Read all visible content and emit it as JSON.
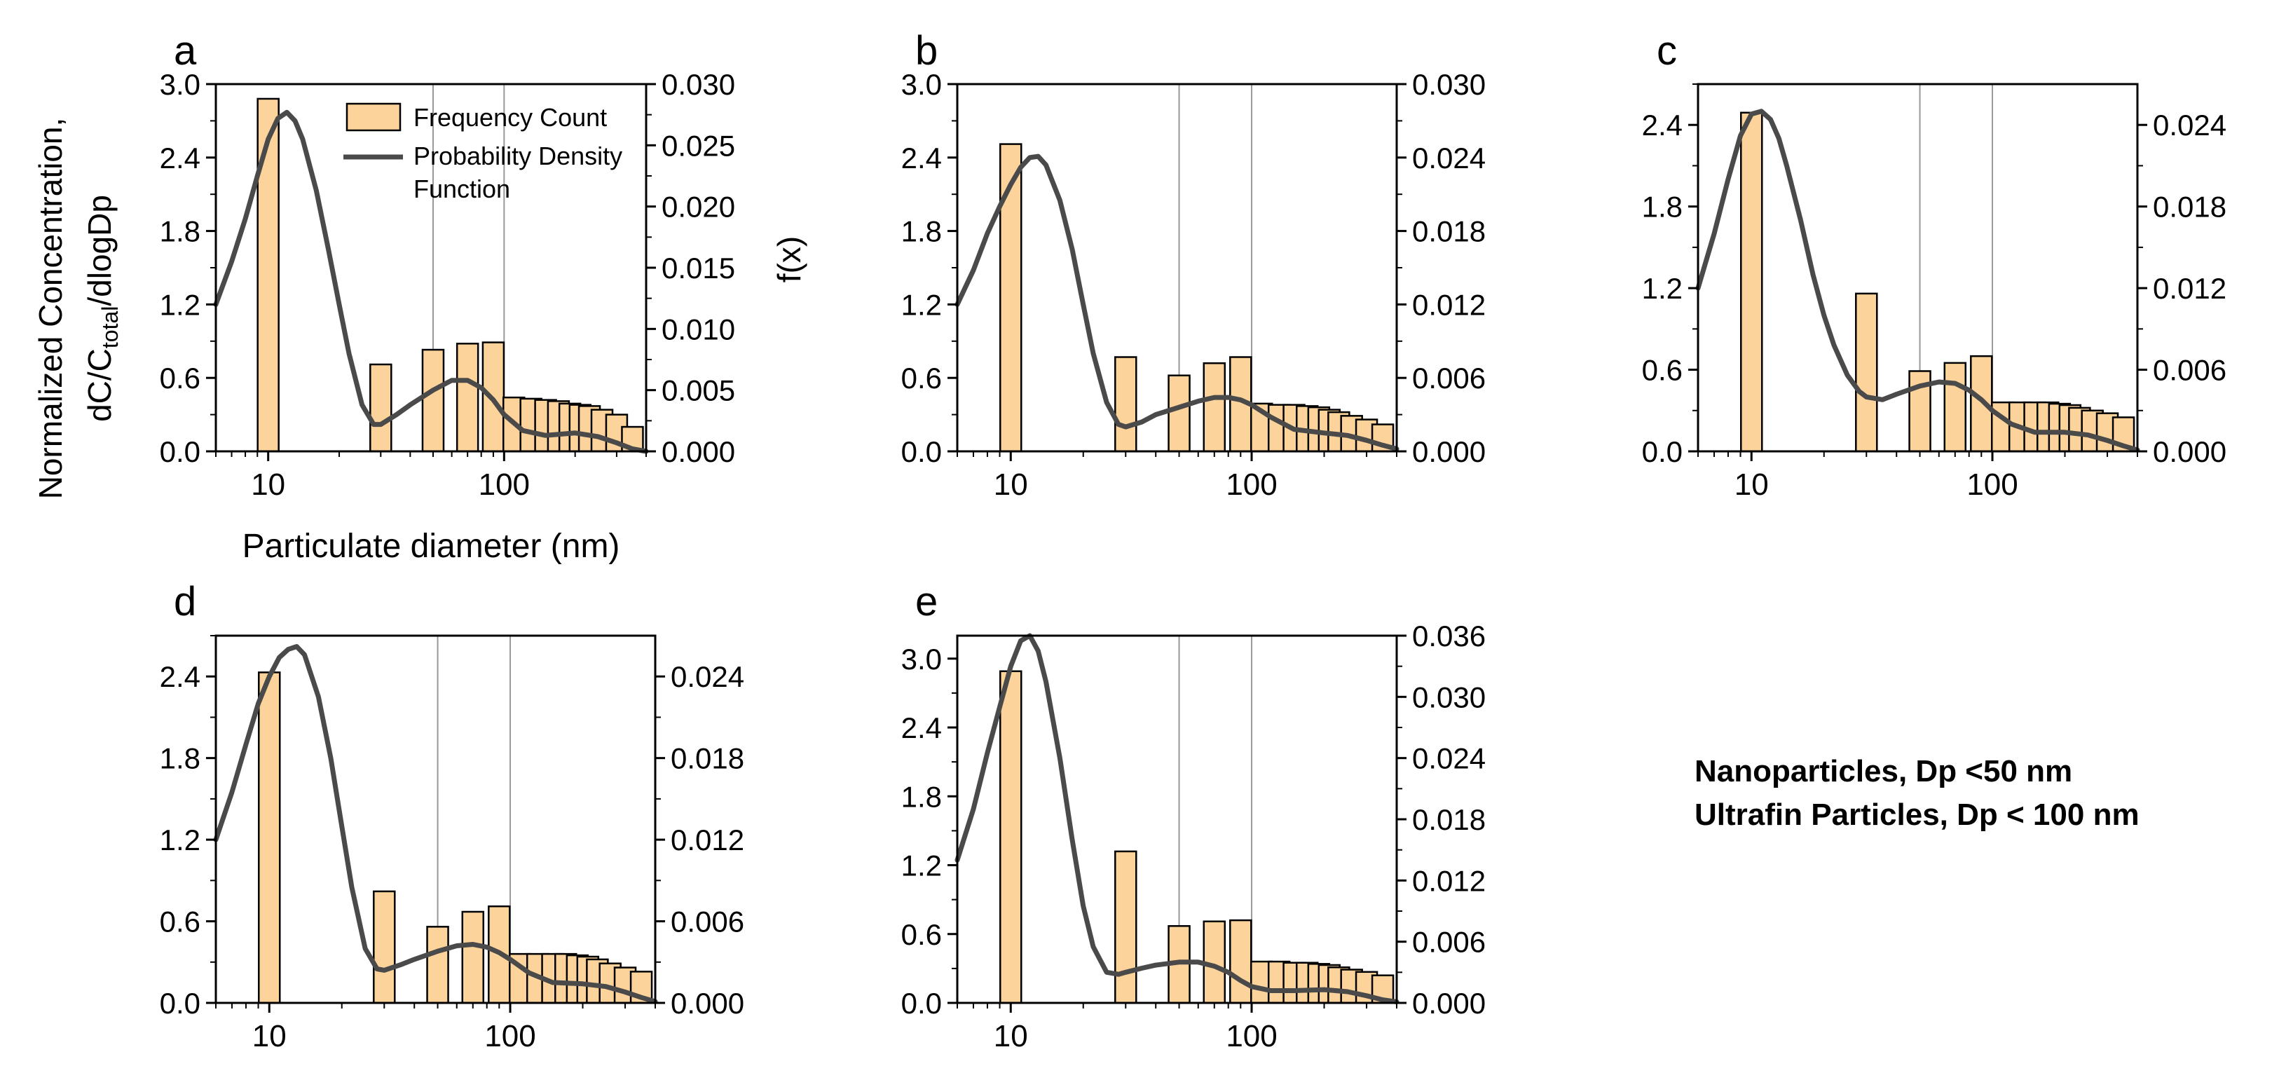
{
  "figure": {
    "caption": {
      "line1": "Nanoparticles, Dp <50 nm",
      "line2": "Ultrafin Particles, Dp < 100 nm"
    },
    "colors": {
      "bar_fill": "#FCD39B",
      "bar_stroke": "#000000",
      "curve": "#4A4A4A",
      "gridline": "#999999"
    },
    "legend": {
      "bar": "Frequency Count",
      "curve_line1": "Probability Density",
      "curve_line2": "Function"
    },
    "left_axis_label": {
      "line1": "Normalized Concentration,",
      "prefix": "dC/C",
      "sub": "total",
      "suffix": "/dlogDp"
    },
    "right_axis_label": "f(x)",
    "x_axis_label": "Particulate diameter (nm)"
  },
  "chart_data": [
    {
      "panel": "a",
      "type": "bar",
      "title": "",
      "xlabel": "Particulate diameter (nm)",
      "ylabel": "Normalized Concentration, dC/Ctotal/dlogDp",
      "y2label": "f(x)",
      "xscale": "log",
      "xlim": [
        6,
        400
      ],
      "xticks": [
        "10",
        "100"
      ],
      "vgrid": [
        50,
        100
      ],
      "ylim": [
        0,
        3.0
      ],
      "yticks": [
        "0.0",
        "0.6",
        "1.2",
        "1.8",
        "2.4",
        "3.0"
      ],
      "y2lim": [
        0,
        0.03
      ],
      "y2ticks": [
        "0.000",
        "0.005",
        "0.010",
        "0.015",
        "0.020",
        "0.025",
        "0.030"
      ],
      "legend": "top-right",
      "bars": {
        "name": "Frequency Count",
        "x": [
          10,
          30,
          50,
          70,
          90,
          110,
          130,
          150,
          170,
          190,
          210,
          230,
          260,
          300,
          350
        ],
        "values": [
          2.88,
          0.71,
          0.83,
          0.88,
          0.89,
          0.44,
          0.43,
          0.42,
          0.41,
          0.39,
          0.38,
          0.37,
          0.34,
          0.3,
          0.2
        ]
      },
      "pdf": {
        "name": "Probability Density Function",
        "x": [
          6,
          7,
          8,
          9,
          10,
          11,
          12,
          13,
          14,
          16,
          18,
          20,
          22,
          25,
          28,
          30,
          35,
          40,
          50,
          60,
          70,
          80,
          90,
          100,
          120,
          150,
          200,
          250,
          300,
          350,
          400
        ],
        "y": [
          0.012,
          0.0155,
          0.019,
          0.0225,
          0.0255,
          0.0272,
          0.0277,
          0.027,
          0.0255,
          0.0213,
          0.0165,
          0.012,
          0.008,
          0.0038,
          0.0022,
          0.0022,
          0.003,
          0.0038,
          0.005,
          0.0058,
          0.0058,
          0.0052,
          0.0042,
          0.003,
          0.0017,
          0.0013,
          0.0015,
          0.0012,
          0.0007,
          0.0002,
          0.0
        ]
      }
    },
    {
      "panel": "b",
      "type": "bar",
      "title": "",
      "xlabel": "",
      "ylabel": "",
      "y2label": "",
      "xscale": "log",
      "xlim": [
        6,
        400
      ],
      "xticks": [
        "10",
        "100"
      ],
      "vgrid": [
        50,
        100
      ],
      "ylim": [
        0,
        3.0
      ],
      "yticks": [
        "0.0",
        "0.6",
        "1.2",
        "1.8",
        "2.4",
        "3.0"
      ],
      "y2lim": [
        0,
        0.03
      ],
      "y2ticks": [
        "0.000",
        "0.006",
        "0.012",
        "0.018",
        "0.024",
        "0.030"
      ],
      "bars": {
        "name": "Frequency Count",
        "x": [
          10,
          30,
          50,
          70,
          90,
          110,
          130,
          150,
          170,
          190,
          210,
          230,
          260,
          300,
          350
        ],
        "values": [
          2.51,
          0.77,
          0.62,
          0.72,
          0.77,
          0.39,
          0.38,
          0.38,
          0.37,
          0.36,
          0.34,
          0.32,
          0.29,
          0.26,
          0.22
        ]
      },
      "pdf": {
        "name": "Probability Density Function",
        "x": [
          6,
          7,
          8,
          9,
          10,
          11,
          12,
          13,
          14,
          16,
          18,
          20,
          22,
          25,
          28,
          30,
          35,
          40,
          50,
          60,
          70,
          80,
          90,
          100,
          120,
          150,
          200,
          250,
          300,
          350,
          400
        ],
        "y": [
          0.012,
          0.0148,
          0.0178,
          0.02,
          0.0218,
          0.0232,
          0.024,
          0.0241,
          0.0234,
          0.0205,
          0.0165,
          0.012,
          0.008,
          0.004,
          0.0022,
          0.002,
          0.0024,
          0.003,
          0.0036,
          0.0041,
          0.0044,
          0.0044,
          0.0042,
          0.0038,
          0.0028,
          0.0018,
          0.0015,
          0.0013,
          0.0009,
          0.0005,
          0.0002
        ]
      }
    },
    {
      "panel": "c",
      "type": "bar",
      "title": "",
      "xlabel": "",
      "ylabel": "",
      "y2label": "",
      "xscale": "log",
      "xlim": [
        6,
        400
      ],
      "xticks": [
        "10",
        "100"
      ],
      "vgrid": [
        50,
        100
      ],
      "ylim": [
        0,
        2.7
      ],
      "yticks": [
        "0.0",
        "0.6",
        "1.2",
        "1.8",
        "2.4"
      ],
      "y2lim": [
        0,
        0.027
      ],
      "y2ticks": [
        "0.000",
        "0.006",
        "0.012",
        "0.018",
        "0.024"
      ],
      "bars": {
        "name": "Frequency Count",
        "x": [
          10,
          30,
          50,
          70,
          90,
          110,
          130,
          150,
          170,
          190,
          210,
          230,
          260,
          300,
          350
        ],
        "values": [
          2.49,
          1.16,
          0.59,
          0.65,
          0.7,
          0.36,
          0.36,
          0.36,
          0.36,
          0.35,
          0.34,
          0.32,
          0.3,
          0.28,
          0.25
        ]
      },
      "pdf": {
        "name": "Probability Density Function",
        "x": [
          6,
          7,
          8,
          9,
          10,
          11,
          12,
          13,
          14,
          16,
          18,
          20,
          22,
          25,
          28,
          30,
          35,
          40,
          50,
          60,
          70,
          80,
          90,
          100,
          120,
          150,
          200,
          250,
          300,
          350,
          400
        ],
        "y": [
          0.012,
          0.016,
          0.02,
          0.0232,
          0.0248,
          0.025,
          0.0244,
          0.023,
          0.021,
          0.017,
          0.013,
          0.01,
          0.0078,
          0.0056,
          0.0044,
          0.004,
          0.0038,
          0.0042,
          0.0048,
          0.0051,
          0.005,
          0.0045,
          0.0038,
          0.003,
          0.002,
          0.0014,
          0.0014,
          0.0012,
          0.0008,
          0.0004,
          0.0001
        ]
      }
    },
    {
      "panel": "d",
      "type": "bar",
      "title": "",
      "xlabel": "",
      "ylabel": "",
      "y2label": "",
      "xscale": "log",
      "xlim": [
        6,
        400
      ],
      "xticks": [
        "10",
        "100"
      ],
      "vgrid": [
        50,
        100
      ],
      "ylim": [
        0,
        2.7
      ],
      "yticks": [
        "0.0",
        "0.6",
        "1.2",
        "1.8",
        "2.4"
      ],
      "y2lim": [
        0,
        0.027
      ],
      "y2ticks": [
        "0.000",
        "0.006",
        "0.012",
        "0.018",
        "0.024"
      ],
      "bars": {
        "name": "Frequency Count",
        "x": [
          10,
          30,
          50,
          70,
          90,
          110,
          130,
          150,
          170,
          190,
          210,
          230,
          260,
          300,
          350
        ],
        "values": [
          2.43,
          0.82,
          0.56,
          0.67,
          0.71,
          0.36,
          0.36,
          0.36,
          0.36,
          0.35,
          0.34,
          0.32,
          0.29,
          0.26,
          0.23
        ]
      },
      "pdf": {
        "name": "Probability Density Function",
        "x": [
          6,
          7,
          8,
          9,
          10,
          11,
          12,
          13,
          14,
          16,
          18,
          20,
          22,
          25,
          28,
          30,
          35,
          40,
          50,
          60,
          70,
          80,
          90,
          100,
          120,
          150,
          200,
          250,
          300,
          350,
          400
        ],
        "y": [
          0.012,
          0.0155,
          0.019,
          0.022,
          0.024,
          0.0254,
          0.026,
          0.0262,
          0.0256,
          0.0225,
          0.018,
          0.013,
          0.0085,
          0.004,
          0.0025,
          0.0024,
          0.0028,
          0.0032,
          0.0038,
          0.0042,
          0.0043,
          0.0041,
          0.0037,
          0.0032,
          0.0022,
          0.0015,
          0.0014,
          0.0012,
          0.0008,
          0.0004,
          0.0001
        ]
      }
    },
    {
      "panel": "e",
      "type": "bar",
      "title": "",
      "xlabel": "",
      "ylabel": "",
      "y2label": "",
      "xscale": "log",
      "xlim": [
        6,
        400
      ],
      "xticks": [
        "10",
        "100"
      ],
      "vgrid": [
        50,
        100
      ],
      "ylim": [
        0,
        3.2
      ],
      "yticks": [
        "0.0",
        "0.6",
        "1.2",
        "1.8",
        "2.4",
        "3.0"
      ],
      "y2lim": [
        0,
        0.036
      ],
      "y2ticks": [
        "0.000",
        "0.006",
        "0.012",
        "0.018",
        "0.024",
        "0.030",
        "0.036"
      ],
      "bars": {
        "name": "Frequency Count",
        "x": [
          10,
          30,
          50,
          70,
          90,
          110,
          130,
          150,
          170,
          190,
          210,
          230,
          260,
          300,
          350
        ],
        "values": [
          2.89,
          1.32,
          0.67,
          0.71,
          0.72,
          0.36,
          0.36,
          0.35,
          0.35,
          0.34,
          0.33,
          0.31,
          0.29,
          0.27,
          0.24
        ]
      },
      "pdf": {
        "name": "Probability Density Function",
        "x": [
          6,
          7,
          8,
          9,
          10,
          11,
          12,
          13,
          14,
          16,
          18,
          20,
          22,
          25,
          28,
          30,
          35,
          40,
          50,
          60,
          70,
          80,
          90,
          100,
          120,
          150,
          200,
          250,
          300,
          350,
          400
        ],
        "y": [
          0.014,
          0.019,
          0.0245,
          0.029,
          0.033,
          0.0355,
          0.036,
          0.0345,
          0.0315,
          0.024,
          0.016,
          0.0095,
          0.0055,
          0.003,
          0.0028,
          0.003,
          0.0034,
          0.0037,
          0.004,
          0.004,
          0.0036,
          0.003,
          0.0022,
          0.0016,
          0.0012,
          0.0012,
          0.0013,
          0.0011,
          0.0007,
          0.0003,
          0.0001
        ]
      }
    }
  ]
}
